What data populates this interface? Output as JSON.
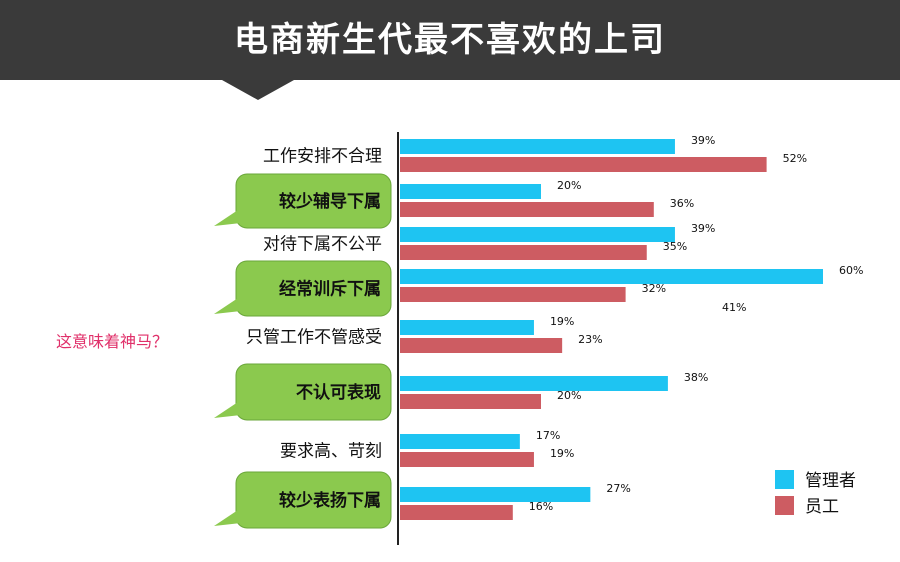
{
  "header": {
    "title": "电商新生代最不喜欢的上司"
  },
  "aside_note": "这意味着神马？",
  "colors": {
    "manager": "#1ec4f2",
    "employee": "#cd5c62",
    "bubble": "#8bc94e",
    "banner": "#3a3a3a"
  },
  "chart_data": {
    "type": "bar",
    "orientation": "horizontal",
    "title": "电商新生代最不喜欢的上司",
    "xlim": [
      0,
      60
    ],
    "categories": [
      "工作安排不合理",
      "较少辅导下属",
      "对待下属不公平",
      "经常训斥下属",
      "只管工作不管感受",
      "不认可表现",
      "要求高、苛刻",
      "较少表扬下属"
    ],
    "highlighted_categories": [
      "较少辅导下属",
      "经常训斥下属",
      "不认可表现",
      "较少表扬下属"
    ],
    "series": [
      {
        "name": "管理者",
        "values": [
          39,
          20,
          39,
          60,
          19,
          38,
          17,
          27
        ],
        "labels": [
          "39%",
          "20%",
          "39%",
          "60%",
          "19%",
          "38%",
          "17%",
          "27%"
        ]
      },
      {
        "name": "员工",
        "values": [
          52,
          36,
          35,
          32,
          23,
          20,
          19,
          16
        ],
        "labels": [
          "52%",
          "36%",
          "35%",
          "32%",
          "23%",
          "20%",
          "19%",
          "16%"
        ]
      }
    ],
    "extra_annotation": "41%",
    "legend": {
      "position": "bottom-right",
      "entries": [
        "管理者",
        "员工"
      ]
    }
  }
}
